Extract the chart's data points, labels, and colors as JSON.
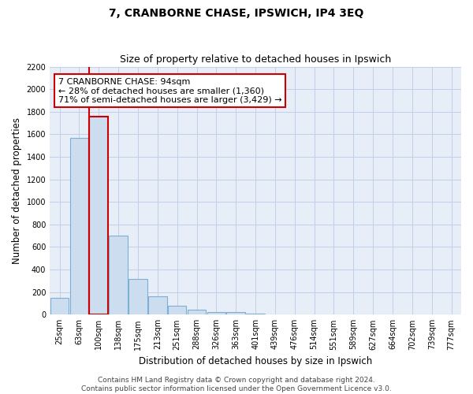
{
  "title": "7, CRANBORNE CHASE, IPSWICH, IP4 3EQ",
  "subtitle": "Size of property relative to detached houses in Ipswich",
  "xlabel": "Distribution of detached houses by size in Ipswich",
  "ylabel": "Number of detached properties",
  "categories": [
    "25sqm",
    "63sqm",
    "100sqm",
    "138sqm",
    "175sqm",
    "213sqm",
    "251sqm",
    "288sqm",
    "326sqm",
    "363sqm",
    "401sqm",
    "439sqm",
    "476sqm",
    "514sqm",
    "551sqm",
    "589sqm",
    "627sqm",
    "664sqm",
    "702sqm",
    "739sqm",
    "777sqm"
  ],
  "values": [
    150,
    1570,
    1760,
    700,
    315,
    160,
    80,
    45,
    25,
    20,
    10,
    5,
    0,
    0,
    0,
    0,
    0,
    0,
    0,
    0,
    0
  ],
  "bar_color": "#ccddf0",
  "bar_edge_color": "#7bafd4",
  "highlight_bar_index": 2,
  "highlight_edge_color": "#cc0000",
  "property_line_color": "#cc0000",
  "annotation_text": "7 CRANBORNE CHASE: 94sqm\n← 28% of detached houses are smaller (1,360)\n71% of semi-detached houses are larger (3,429) →",
  "annotation_box_color": "#ffffff",
  "annotation_box_edge_color": "#cc0000",
  "ylim": [
    0,
    2200
  ],
  "yticks": [
    0,
    200,
    400,
    600,
    800,
    1000,
    1200,
    1400,
    1600,
    1800,
    2000,
    2200
  ],
  "footer_line1": "Contains HM Land Registry data © Crown copyright and database right 2024.",
  "footer_line2": "Contains public sector information licensed under the Open Government Licence v3.0.",
  "background_color": "#ffffff",
  "plot_bg_color": "#e8eef8",
  "grid_color": "#c0cfe8",
  "title_fontsize": 10,
  "subtitle_fontsize": 9,
  "axis_label_fontsize": 8.5,
  "tick_fontsize": 7,
  "annotation_fontsize": 8,
  "footer_fontsize": 6.5
}
